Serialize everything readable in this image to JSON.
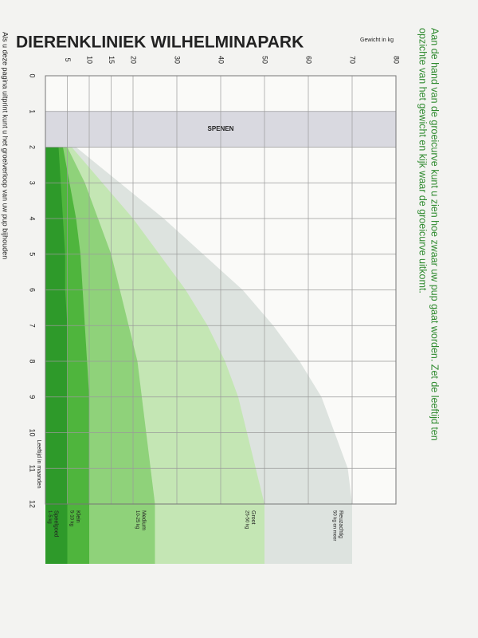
{
  "header": {
    "title": "DIERENKLINIEK WILHELMINAPARK"
  },
  "instruction": {
    "lines": [
      "Aan de hand van de groeicurve kunt u zien hoe zwaar uw pup gaat worden. Zet de leeftijd ten",
      "opzichte van het gewicht en kijk waar de groeicurve uitkomt."
    ]
  },
  "footer_note": "Als u deze pagina uitprint kunt u het groeiverloop van uw pup bijhouden",
  "chart_data": {
    "type": "area",
    "xlabel": "Leeftijd in maanden",
    "ylabel": "Gewicht in kg",
    "annotation": "SPENEN",
    "annotation_range": [
      1,
      2
    ],
    "x": [
      2,
      3,
      4,
      5,
      6,
      7,
      8,
      9,
      10,
      11,
      12
    ],
    "xlim": [
      0,
      12
    ],
    "xticks": [
      0,
      1,
      2,
      3,
      4,
      5,
      6,
      7,
      8,
      9,
      10,
      11,
      12
    ],
    "ylim": [
      0,
      80
    ],
    "yticks": [
      5,
      10,
      15,
      20,
      30,
      40,
      50,
      60,
      70,
      80
    ],
    "grid": true,
    "series": [
      {
        "name": "Reuzachtig",
        "range": "50 kg en meer",
        "color": "#dde3df",
        "values": [
          7,
          17,
          27,
          36,
          45,
          52,
          58,
          63,
          66,
          69,
          70
        ]
      },
      {
        "name": "Groot",
        "range": "25-50 kg",
        "color": "#c4e6b4",
        "values": [
          6,
          13,
          20,
          26,
          32,
          37,
          41,
          44,
          46,
          48,
          50
        ]
      },
      {
        "name": "Medium",
        "range": "10-25 kg",
        "color": "#8fd27a",
        "values": [
          5,
          9,
          12,
          15,
          17,
          19,
          21,
          22,
          23,
          24,
          25
        ]
      },
      {
        "name": "Klein",
        "range": "5-10 kg",
        "color": "#4fb53d",
        "values": [
          4,
          5.5,
          7,
          8,
          8.5,
          9,
          9.5,
          10,
          10,
          10,
          10
        ]
      },
      {
        "name": "Speelgoed",
        "range": "1-5 kg",
        "color": "#2e9a2a",
        "values": [
          3,
          3.5,
          4,
          4.5,
          4.5,
          5,
          5,
          5,
          5,
          5,
          5
        ]
      }
    ]
  }
}
